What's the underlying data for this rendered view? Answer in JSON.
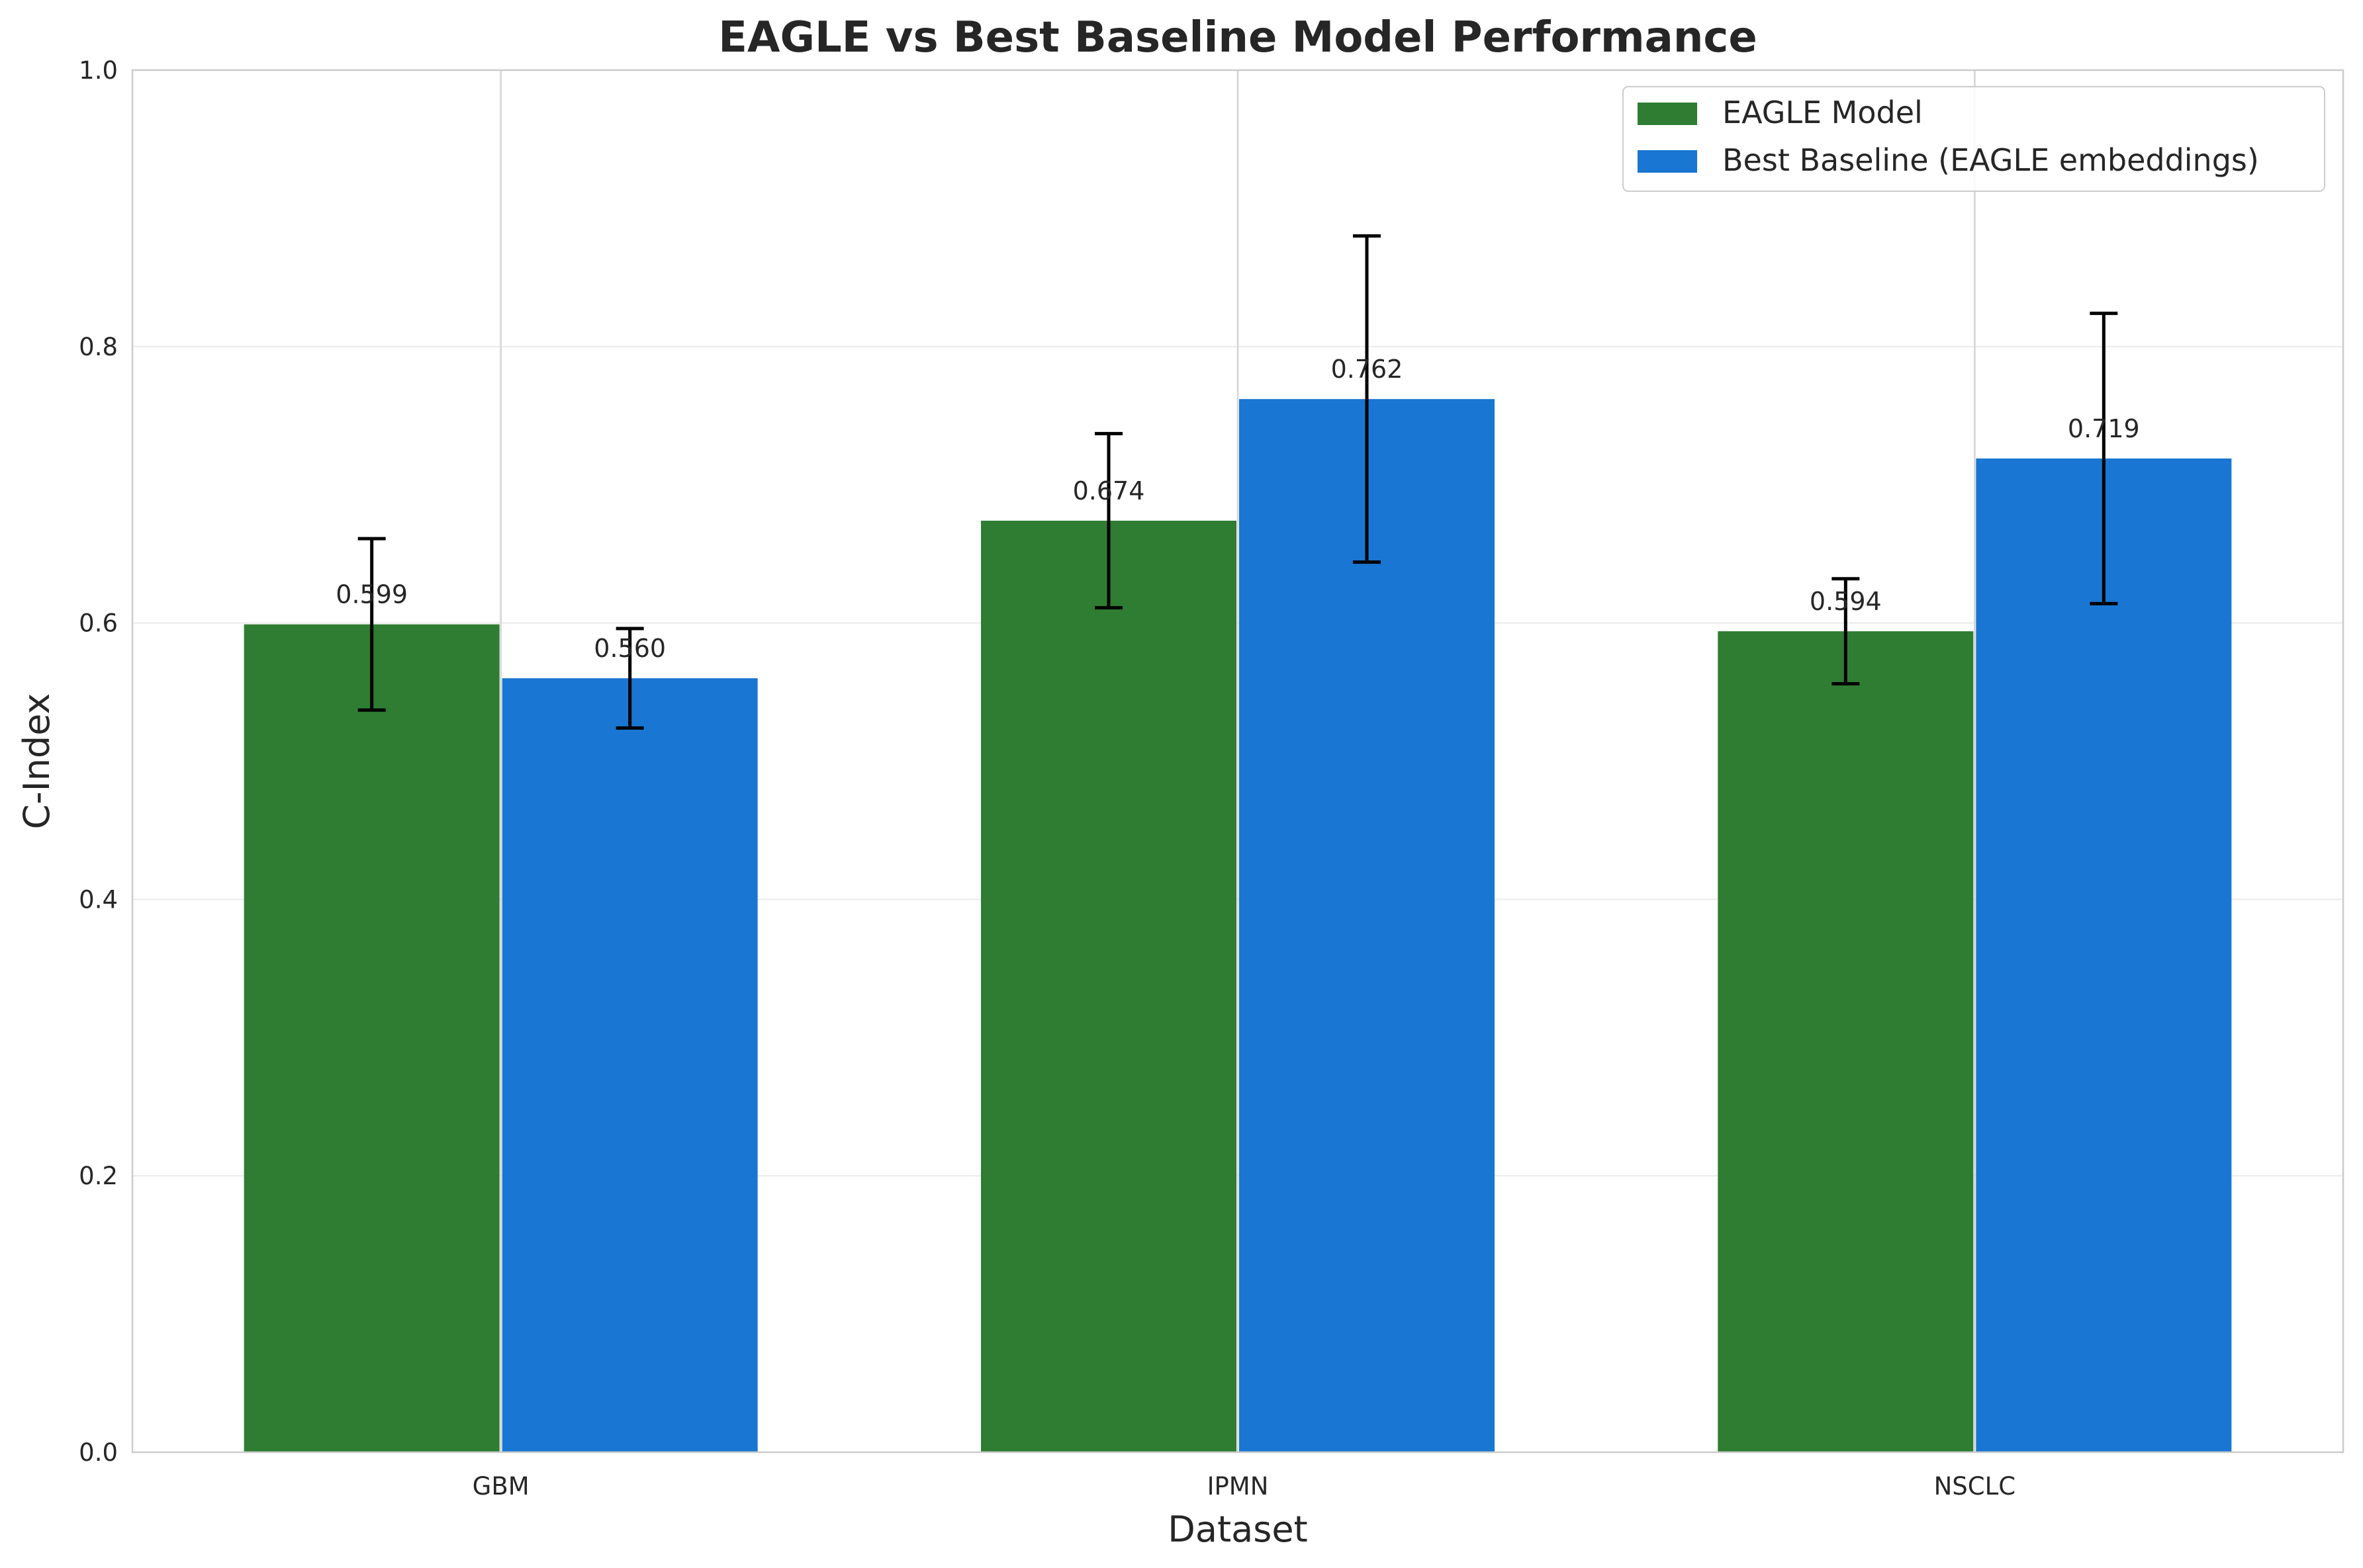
{
  "chart_data": {
    "type": "bar",
    "title": "EAGLE vs Best Baseline Model Performance",
    "xlabel": "Dataset",
    "ylabel": "C-Index",
    "categories": [
      "GBM",
      "IPMN",
      "NSCLC"
    ],
    "ylim": [
      0,
      1
    ],
    "yticks": [
      "0.0",
      "0.2",
      "0.4",
      "0.6",
      "0.8",
      "1.0"
    ],
    "grid": true,
    "legend_position": "top-right",
    "series": [
      {
        "name": "EAGLE Model",
        "color": "#2e7d32",
        "values": [
          0.599,
          0.674,
          0.594
        ],
        "labels": [
          "0.599",
          "0.674",
          "0.594"
        ],
        "errors": [
          0.062,
          0.063,
          0.038
        ]
      },
      {
        "name": "Best Baseline (EAGLE embeddings)",
        "color": "#1976d2",
        "values": [
          0.56,
          0.762,
          0.719
        ],
        "labels": [
          "0.560",
          "0.762",
          "0.719"
        ],
        "errors": [
          0.036,
          0.118,
          0.105
        ]
      }
    ]
  }
}
